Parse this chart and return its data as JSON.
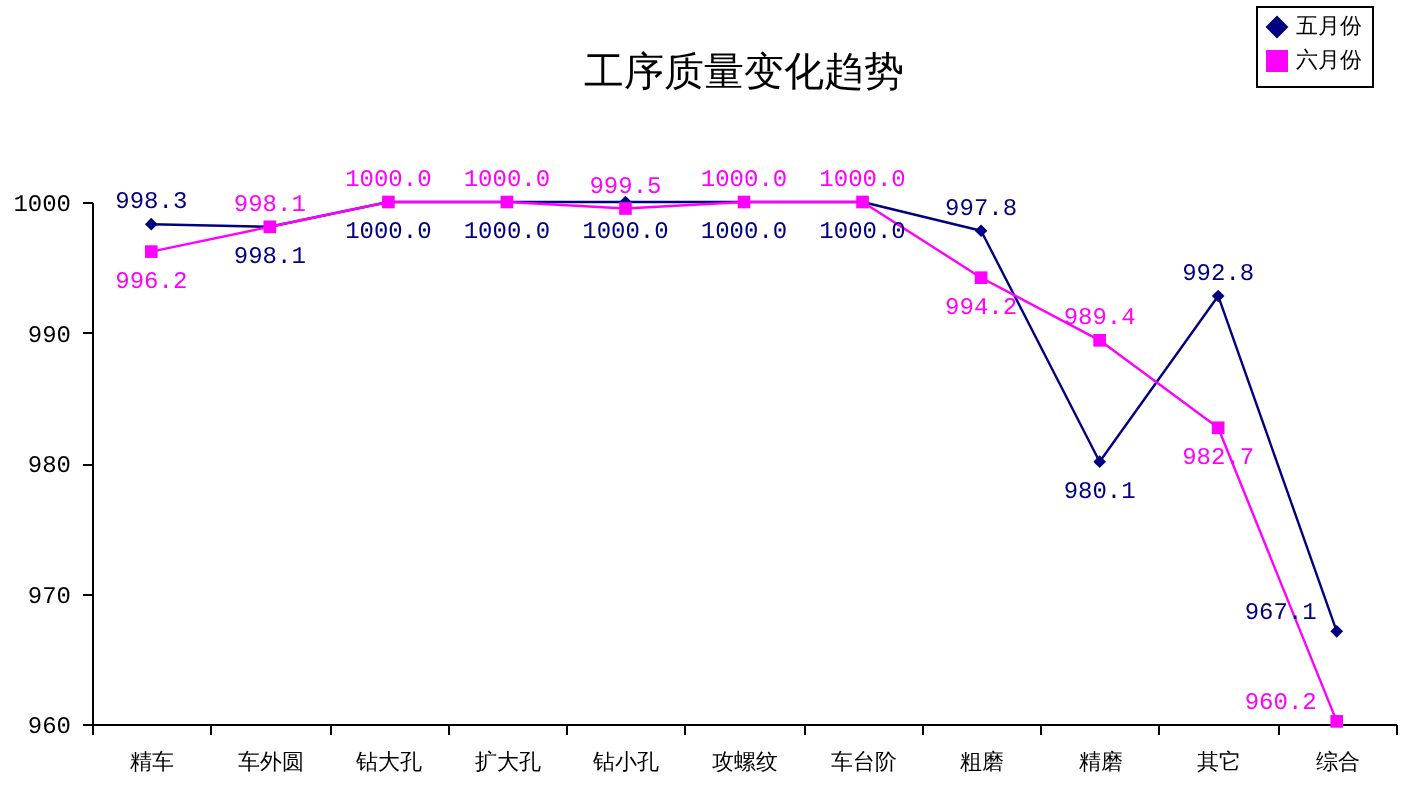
{
  "chart_data": {
    "type": "line",
    "title": "工序质量变化趋势",
    "categories": [
      "精车",
      "车外圆",
      "钻大孔",
      "扩大孔",
      "钻小孔",
      "攻螺纹",
      "车台阶",
      "粗磨",
      "精磨",
      "其它",
      "综合"
    ],
    "series": [
      {
        "name": "五月份",
        "color": "#000080",
        "marker": "diamond",
        "values": [
          998.3,
          998.1,
          1000.0,
          1000.0,
          1000.0,
          1000.0,
          1000.0,
          997.8,
          980.1,
          992.8,
          967.1
        ],
        "value_labels": [
          "998.3",
          "998.1",
          "1000.0",
          "1000.0",
          "1000.0",
          "1000.0",
          "1000.0",
          "997.8",
          "980.1",
          "992.8",
          "967.1"
        ]
      },
      {
        "name": "六月份",
        "color": "#ff00ff",
        "marker": "square",
        "values": [
          996.2,
          998.1,
          1000.0,
          1000.0,
          999.5,
          1000.0,
          1000.0,
          994.2,
          989.4,
          982.7,
          960.2
        ],
        "value_labels": [
          "996.2",
          "998.1",
          "1000.0",
          "1000.0",
          "999.5",
          "1000.0",
          "1000.0",
          "994.2",
          "989.4",
          "982.7",
          "960.2"
        ]
      }
    ],
    "ylim": [
      960,
      1000
    ],
    "yticks": [
      960,
      970,
      980,
      990,
      1000
    ],
    "grid": false,
    "legend": "top right"
  }
}
